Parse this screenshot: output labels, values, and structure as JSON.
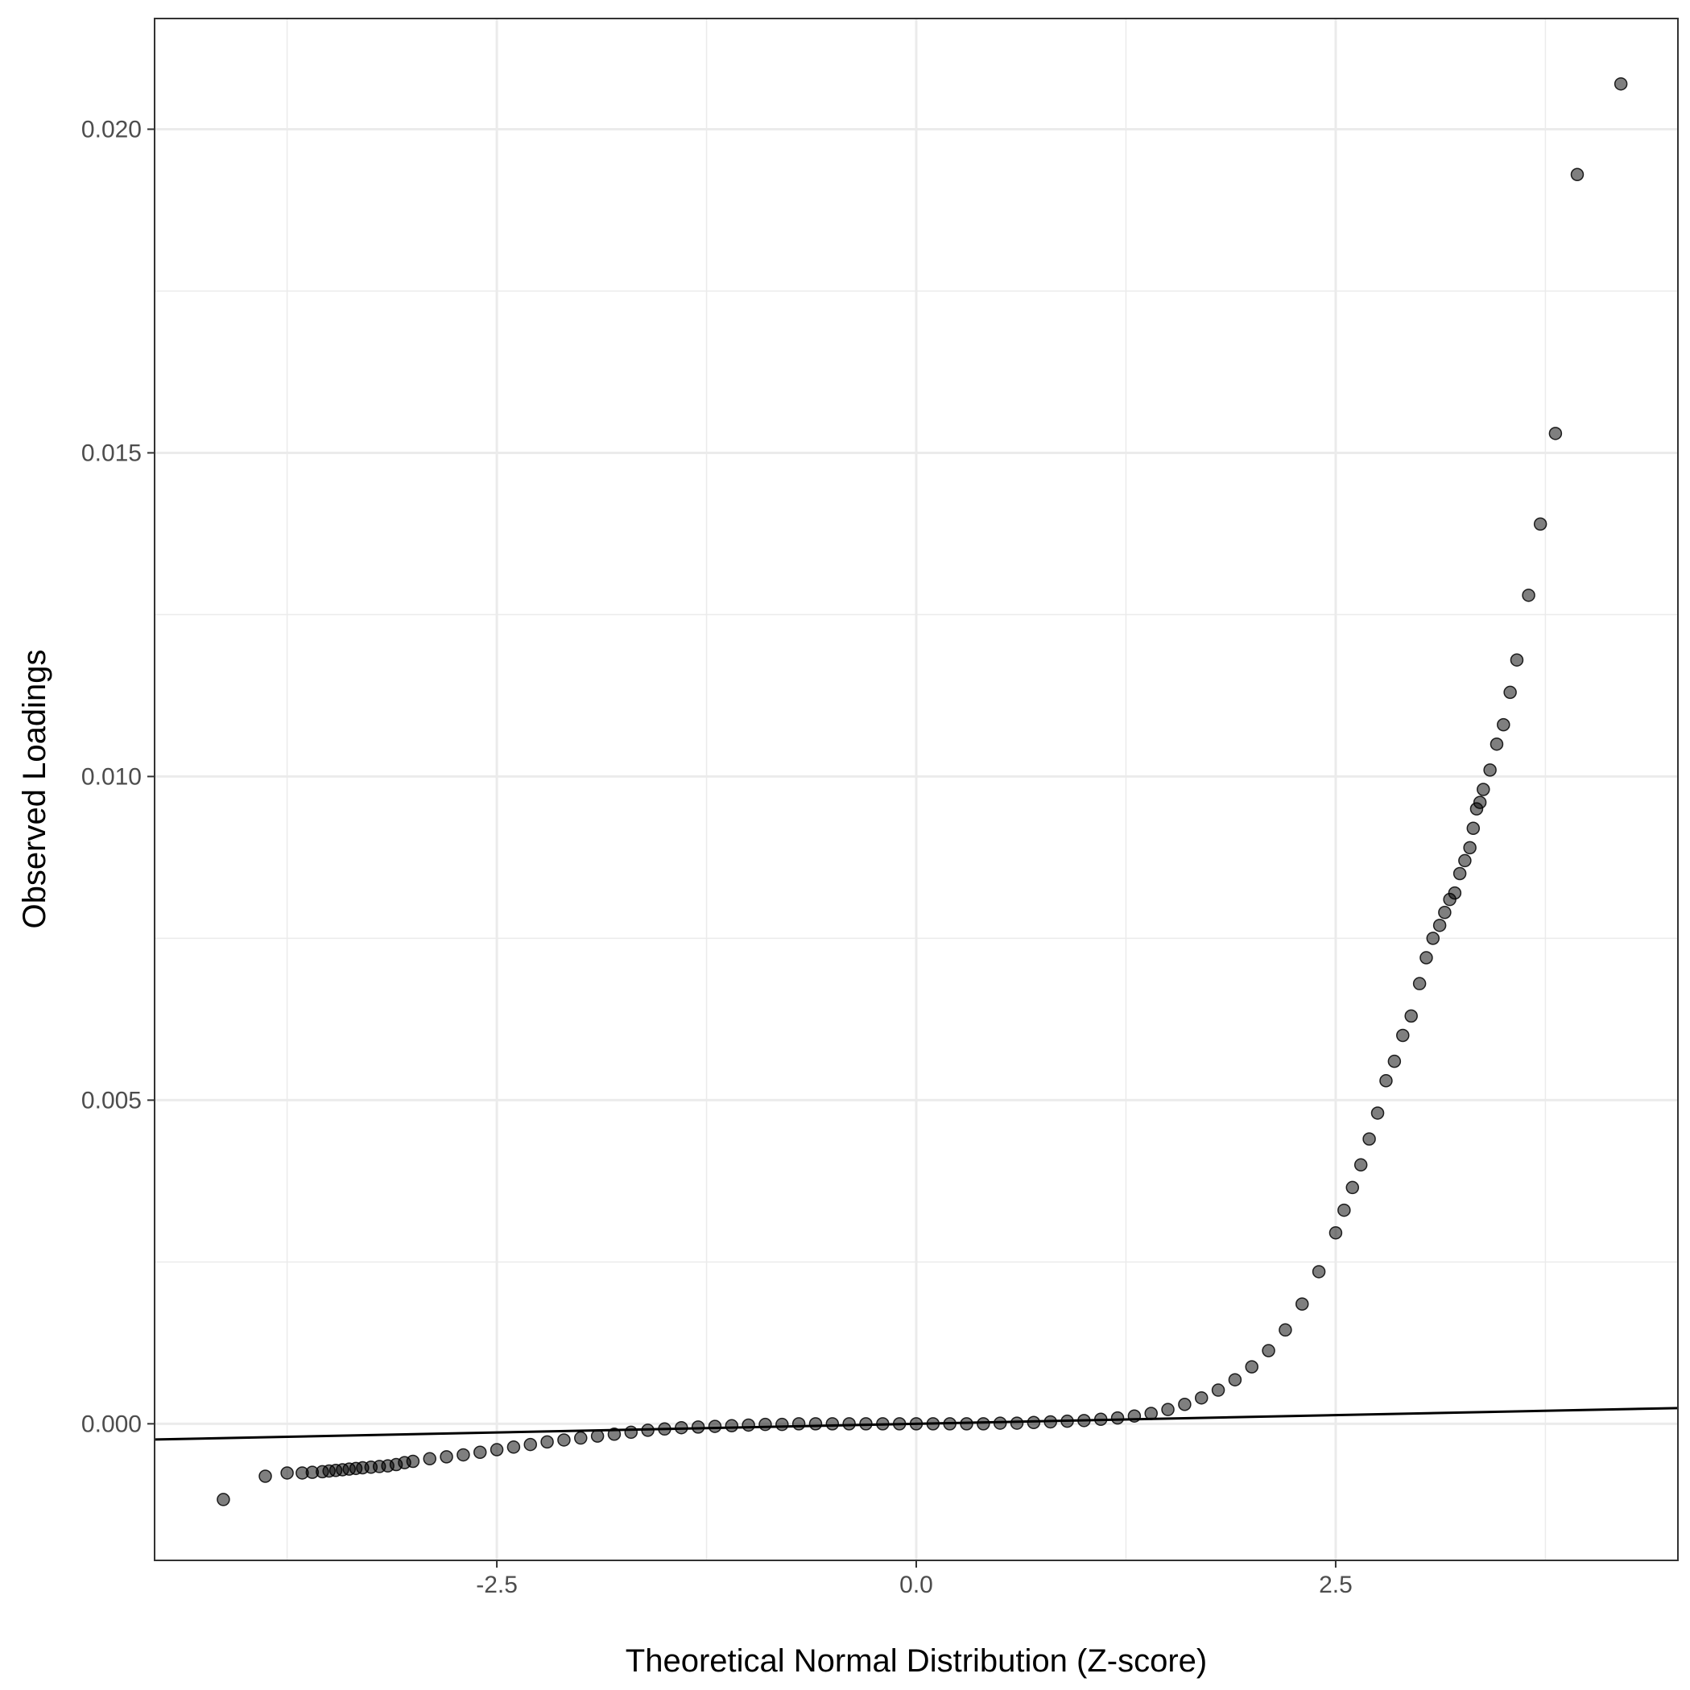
{
  "chart_data": {
    "type": "scatter",
    "title": "",
    "xlabel": "Theoretical Normal Distribution (Z-score)",
    "ylabel": "Observed Loadings",
    "xlim": [
      -4.54,
      4.54
    ],
    "ylim": [
      -0.00211,
      0.02171
    ],
    "x_ticks": [
      -2.5,
      0.0,
      2.5
    ],
    "x_tick_labels": [
      "-2.5",
      "0.0",
      "2.5"
    ],
    "y_ticks": [
      0.0,
      0.005,
      0.01,
      0.015,
      0.02
    ],
    "y_tick_labels": [
      "0.000",
      "0.005",
      "0.010",
      "0.015",
      "0.020"
    ],
    "grid": true,
    "legend": "none",
    "theme": "bw",
    "point_color": "#000000",
    "point_opacity": 0.5,
    "reference_line": {
      "intercept": 0.0,
      "slope": 5.35e-05,
      "color": "#000000"
    },
    "series": [
      {
        "x": [
          -4.13,
          -3.88,
          -3.75,
          -3.66,
          -3.6,
          -3.54,
          -3.5,
          -3.46,
          -3.42,
          -3.38,
          -3.34,
          -3.3,
          -3.25,
          -3.2,
          -3.15,
          -3.1,
          -3.05,
          -3.0,
          -2.9,
          -2.8,
          -2.7,
          -2.6,
          -2.5,
          -2.4,
          -2.3,
          -2.2,
          -2.1,
          -2.0,
          -1.9,
          -1.8,
          -1.7,
          -1.6,
          -1.5,
          -1.4,
          -1.3,
          -1.2,
          -1.1,
          -1.0,
          -0.9,
          -0.8,
          -0.7,
          -0.6,
          -0.5,
          -0.4,
          -0.3,
          -0.2,
          -0.1,
          0.0,
          0.1,
          0.2,
          0.3,
          0.4,
          0.5,
          0.6,
          0.7,
          0.8,
          0.9,
          1.0,
          1.1,
          1.2,
          1.3,
          1.4,
          1.5,
          1.6,
          1.7,
          1.8,
          1.9,
          2.0,
          2.1,
          2.2,
          2.3,
          2.4,
          2.5,
          2.55,
          2.6,
          2.65,
          2.7,
          2.75,
          2.8,
          2.85,
          2.9,
          2.95,
          3.0,
          3.04,
          3.08,
          3.12,
          3.15,
          3.18,
          3.21,
          3.24,
          3.27,
          3.3,
          3.32,
          3.34,
          3.36,
          3.38,
          3.42,
          3.46,
          3.5,
          3.54,
          3.58,
          3.65,
          3.72,
          3.81,
          3.94,
          4.2
        ],
        "y": [
          -0.00117,
          -0.00081,
          -0.00076,
          -0.00076,
          -0.00075,
          -0.00074,
          -0.00073,
          -0.00072,
          -0.00071,
          -0.0007,
          -0.00069,
          -0.00068,
          -0.00067,
          -0.00066,
          -0.00065,
          -0.00063,
          -0.0006,
          -0.00058,
          -0.00054,
          -0.00051,
          -0.00048,
          -0.00044,
          -0.0004,
          -0.00036,
          -0.00032,
          -0.00028,
          -0.00025,
          -0.00022,
          -0.00019,
          -0.00016,
          -0.00013,
          -0.0001,
          -8e-05,
          -6e-05,
          -5e-05,
          -4e-05,
          -3e-05,
          -2e-05,
          -1e-05,
          -1e-05,
          0.0,
          0.0,
          0.0,
          0.0,
          0.0,
          0.0,
          0.0,
          0.0,
          0.0,
          0.0,
          0.0,
          0.0,
          1e-05,
          1e-05,
          2e-05,
          3e-05,
          4e-05,
          5e-05,
          7e-05,
          9e-05,
          0.00012,
          0.00016,
          0.00022,
          0.0003,
          0.0004,
          0.00052,
          0.00068,
          0.00088,
          0.00113,
          0.00145,
          0.00185,
          0.00235,
          0.00295,
          0.0033,
          0.00365,
          0.004,
          0.0044,
          0.0048,
          0.0053,
          0.0056,
          0.006,
          0.0063,
          0.0068,
          0.0072,
          0.0075,
          0.0077,
          0.0079,
          0.0081,
          0.0082,
          0.0085,
          0.0087,
          0.0089,
          0.0092,
          0.0095,
          0.0096,
          0.0098,
          0.0101,
          0.0105,
          0.0108,
          0.0113,
          0.0118,
          0.0128,
          0.0139,
          0.0153,
          0.0193,
          0.0207
        ]
      }
    ]
  }
}
